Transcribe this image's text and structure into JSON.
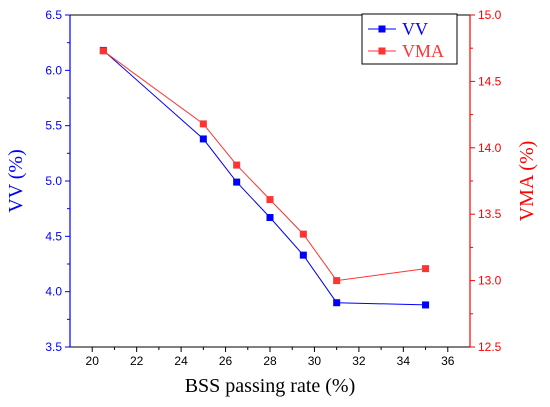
{
  "chart_data": {
    "type": "line",
    "xlabel": "BSS passing rate (%)",
    "xlim": [
      19,
      37
    ],
    "xticks": [
      20,
      22,
      24,
      26,
      28,
      30,
      32,
      34,
      36
    ],
    "y_left": {
      "label": "VV (%)",
      "lim": [
        3.5,
        6.5
      ],
      "ticks": [
        3.5,
        4.0,
        4.5,
        5.0,
        5.5,
        6.0,
        6.5
      ],
      "color": "#0000ff"
    },
    "y_right": {
      "label": "VMA (%)",
      "lim": [
        12.5,
        15.0
      ],
      "ticks": [
        12.5,
        13.0,
        13.5,
        14.0,
        14.5,
        15.0
      ],
      "color": "#ff0000"
    },
    "series": [
      {
        "name": "VV",
        "axis": "left",
        "color": "#0000ff",
        "marker": "square",
        "x": [
          20.5,
          25.0,
          26.5,
          28.0,
          29.5,
          31.0,
          35.0
        ],
        "y": [
          6.18,
          5.38,
          4.99,
          4.67,
          4.33,
          3.9,
          3.88
        ]
      },
      {
        "name": "VMA",
        "axis": "right",
        "color": "#ff3333",
        "marker": "square",
        "x": [
          20.5,
          25.0,
          26.5,
          28.0,
          29.5,
          31.0,
          35.0
        ],
        "y": [
          14.73,
          14.18,
          13.87,
          13.61,
          13.35,
          13.0,
          13.09
        ]
      }
    ],
    "legend_position": "top-right"
  }
}
